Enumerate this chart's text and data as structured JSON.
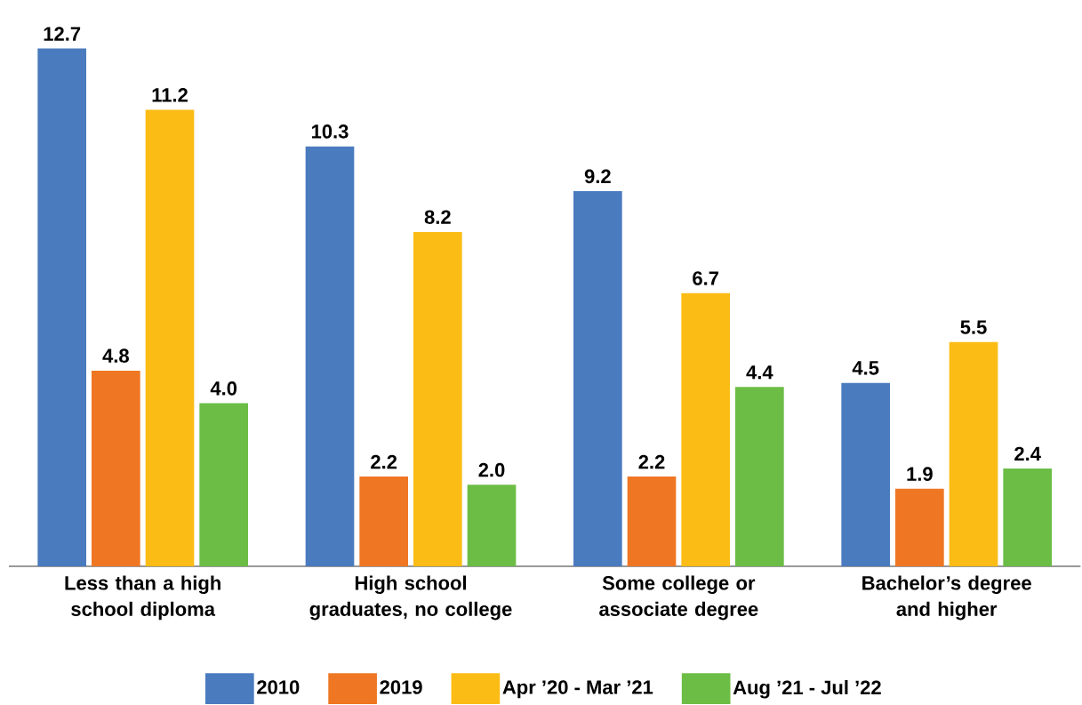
{
  "chart_data": {
    "type": "bar",
    "categories": [
      "Less than a high school diploma",
      "High school graduates, no college",
      "Some college or associate degree",
      "Bachelor’s degree and higher"
    ],
    "series": [
      {
        "name": "2010",
        "color": "#4a7bbf",
        "values": [
          12.7,
          10.3,
          9.2,
          4.5
        ],
        "value_labels": [
          "12.7",
          "10.3",
          "9.2",
          "4.5"
        ]
      },
      {
        "name": "2019",
        "color": "#ef7622",
        "values": [
          4.8,
          2.2,
          2.2,
          1.9
        ],
        "value_labels": [
          "4.8",
          "2.2",
          "2.2",
          "1.9"
        ]
      },
      {
        "name": "Apr ’20 - Mar ’21",
        "color": "#fbbc15",
        "values": [
          11.2,
          8.2,
          6.7,
          5.5
        ],
        "value_labels": [
          "11.2",
          "8.2",
          "6.7",
          "5.5"
        ]
      },
      {
        "name": "Aug ’21 - Jul ’22",
        "color": "#6cbd45",
        "values": [
          4.0,
          2.0,
          4.4,
          2.4
        ],
        "value_labels": [
          "4.0",
          "2.0",
          "4.4",
          "2.4"
        ]
      }
    ],
    "legend": "bottom"
  }
}
